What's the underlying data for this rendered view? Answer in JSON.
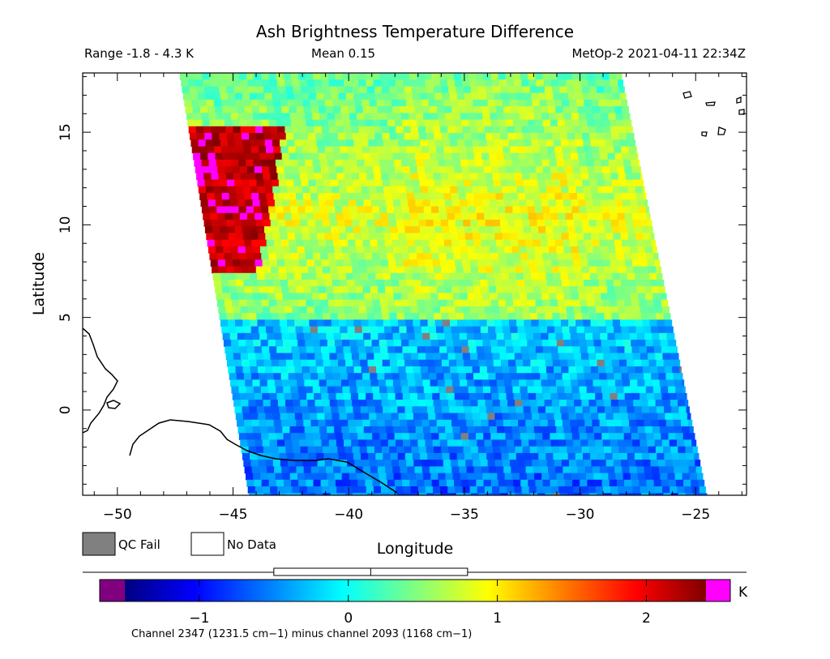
{
  "chart_data": {
    "type": "heatmap",
    "title": "Ash Brightness Temperature Difference",
    "header": {
      "range": "Range -1.8 - 4.3 K",
      "mean": "Mean 0.15",
      "satellite_time": "MetOp-2 2021-04-11 22:34Z"
    },
    "xlabel": "Longitude",
    "ylabel": "Latitude",
    "xlim": [
      -51.5,
      -22.8
    ],
    "ylim": [
      -4.6,
      18.2
    ],
    "xticks": [
      -50,
      -45,
      -40,
      -35,
      -30,
      -25
    ],
    "xtick_labels": [
      "−50",
      "−45",
      "−40",
      "−35",
      "−30",
      "−25"
    ],
    "yticks": [
      0,
      5,
      10,
      15
    ],
    "ytick_labels": [
      "0",
      "5",
      "10",
      "15"
    ],
    "swath": {
      "top_left": [
        -47.3,
        18.2
      ],
      "top_right": [
        -28.2,
        18.2
      ],
      "bottom_right": [
        -24.5,
        -4.6
      ],
      "bottom_left": [
        -44.3,
        -4.6
      ]
    },
    "field_regions": [
      {
        "region": "high-latitude north-west corner",
        "lon": [
          -48,
          -44
        ],
        "lat": [
          8,
          15
        ],
        "value_range": [
          2.0,
          2.5
        ]
      },
      {
        "region": "central band",
        "lon": [
          -45,
          -28
        ],
        "lat": [
          5,
          15
        ],
        "value_range": [
          0.5,
          1.2
        ]
      },
      {
        "region": "southern swath",
        "lon": [
          -44,
          -25
        ],
        "lat": [
          -4.6,
          5
        ],
        "value_range": [
          -1.0,
          -0.2
        ]
      }
    ],
    "legend": {
      "qc_fail_label": "QC Fail",
      "qc_fail_color": "#808080",
      "no_data_label": "No Data",
      "no_data_color": "#ffffff"
    },
    "colorbar": {
      "min": -1.5,
      "max": 2.4,
      "ticks": [
        -1,
        0,
        1,
        2
      ],
      "tick_labels": [
        "−1",
        "0",
        "1",
        "2"
      ],
      "unit": "K",
      "under_color": "#800080",
      "over_color": "#ff00ff",
      "colors": [
        "#000080",
        "#0000ff",
        "#0080ff",
        "#00ffff",
        "#80ff80",
        "#ffff00",
        "#ff8000",
        "#ff0000",
        "#800000"
      ],
      "mean_marker": 0.15,
      "box_range": [
        -0.5,
        0.8
      ]
    },
    "channel_caption": "Channel 2347 (1231.5 cm−1) minus channel 2093 (1168 cm−1)"
  }
}
